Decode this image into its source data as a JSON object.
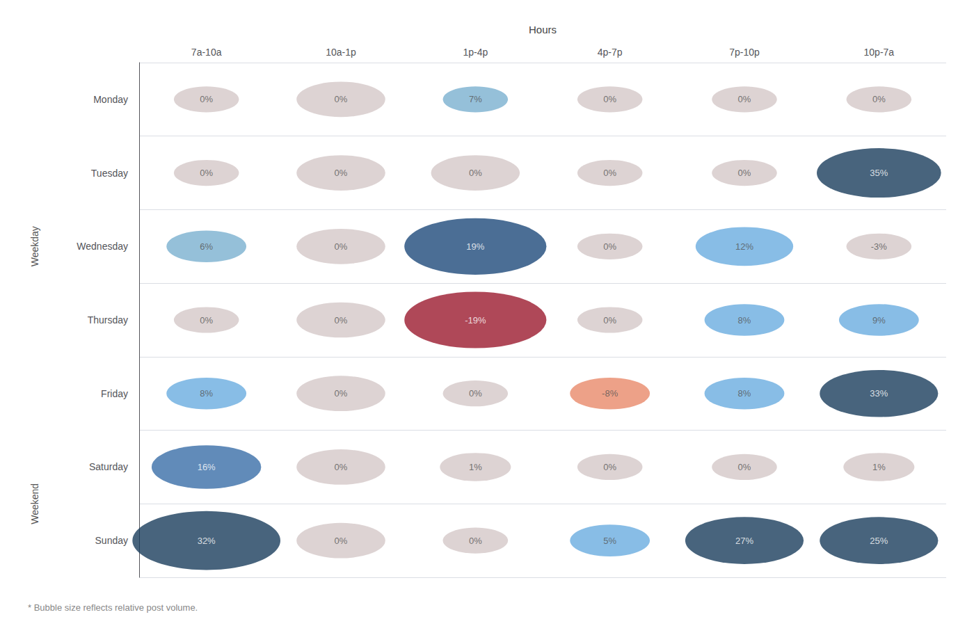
{
  "chart_data": {
    "type": "bubble",
    "xlabel": "Hours",
    "categories": [
      "7a-10a",
      "10a-1p",
      "1p-4p",
      "4p-7p",
      "7p-10p",
      "10p-7a"
    ],
    "y_categories": [
      "Monday",
      "Tuesday",
      "Wednesday",
      "Thursday",
      "Friday",
      "Saturday",
      "Sunday"
    ],
    "values": [
      [
        0,
        0,
        7,
        0,
        0,
        0
      ],
      [
        0,
        0,
        0,
        0,
        0,
        35
      ],
      [
        6,
        0,
        19,
        0,
        12,
        -3
      ],
      [
        0,
        0,
        -19,
        0,
        8,
        9
      ],
      [
        8,
        0,
        0,
        -8,
        8,
        33
      ],
      [
        16,
        0,
        1,
        0,
        0,
        1
      ],
      [
        32,
        0,
        0,
        5,
        27,
        25
      ]
    ],
    "value_labels": [
      [
        "0%",
        "0%",
        "7%",
        "0%",
        "0%",
        "0%"
      ],
      [
        "0%",
        "0%",
        "0%",
        "0%",
        "0%",
        "35%"
      ],
      [
        "6%",
        "0%",
        "19%",
        "0%",
        "12%",
        "-3%"
      ],
      [
        "0%",
        "0%",
        "-19%",
        "0%",
        "8%",
        "9%"
      ],
      [
        "8%",
        "0%",
        "0%",
        "-8%",
        "8%",
        "33%"
      ],
      [
        "16%",
        "0%",
        "1%",
        "0%",
        "0%",
        "1%"
      ],
      [
        "32%",
        "0%",
        "0%",
        "5%",
        "27%",
        "25%"
      ]
    ],
    "sizes": [
      [
        0.22,
        0.3,
        0.22,
        0.22,
        0.22,
        0.22
      ],
      [
        0.22,
        0.3,
        0.3,
        0.22,
        0.22,
        0.42
      ],
      [
        0.27,
        0.3,
        0.48,
        0.22,
        0.33,
        0.22
      ],
      [
        0.22,
        0.3,
        0.48,
        0.22,
        0.27,
        0.27
      ],
      [
        0.27,
        0.3,
        0.22,
        0.27,
        0.27,
        0.4
      ],
      [
        0.37,
        0.3,
        0.24,
        0.22,
        0.22,
        0.24
      ],
      [
        0.5,
        0.3,
        0.22,
        0.27,
        0.4,
        0.4
      ]
    ],
    "colors": [
      [
        "#d5c8c8",
        "#d5c8c8",
        "#7ab0d0",
        "#d5c8c8",
        "#d5c8c8",
        "#d5c8c8"
      ],
      [
        "#d5c8c8",
        "#d5c8c8",
        "#d5c8c8",
        "#d5c8c8",
        "#d5c8c8",
        "#1a3d5c"
      ],
      [
        "#7ab0d0",
        "#d5c8c8",
        "#1e4a7a",
        "#d5c8c8",
        "#6aace0",
        "#d5c8c8"
      ],
      [
        "#d5c8c8",
        "#d5c8c8",
        "#9b1a2e",
        "#d5c8c8",
        "#6aace0",
        "#6aace0"
      ],
      [
        "#6aace0",
        "#d5c8c8",
        "#d5c8c8",
        "#e88a6a",
        "#6aace0",
        "#1a3d5c"
      ],
      [
        "#3a6ea8",
        "#d5c8c8",
        "#d5c8c8",
        "#d5c8c8",
        "#d5c8c8",
        "#d5c8c8"
      ],
      [
        "#1a3d5c",
        "#d5c8c8",
        "#d5c8c8",
        "#6aace0",
        "#1a3d5c",
        "#1a3d5c"
      ]
    ],
    "annotations": [
      {
        "text": "Weekday",
        "first": "Monday",
        "last": "Friday"
      },
      {
        "text": "Weekend",
        "first": "Saturday",
        "last": "Sunday"
      }
    ],
    "footnote": "* Bubble size reflects relative post volume.",
    "grid": true,
    "data_labels": true
  }
}
